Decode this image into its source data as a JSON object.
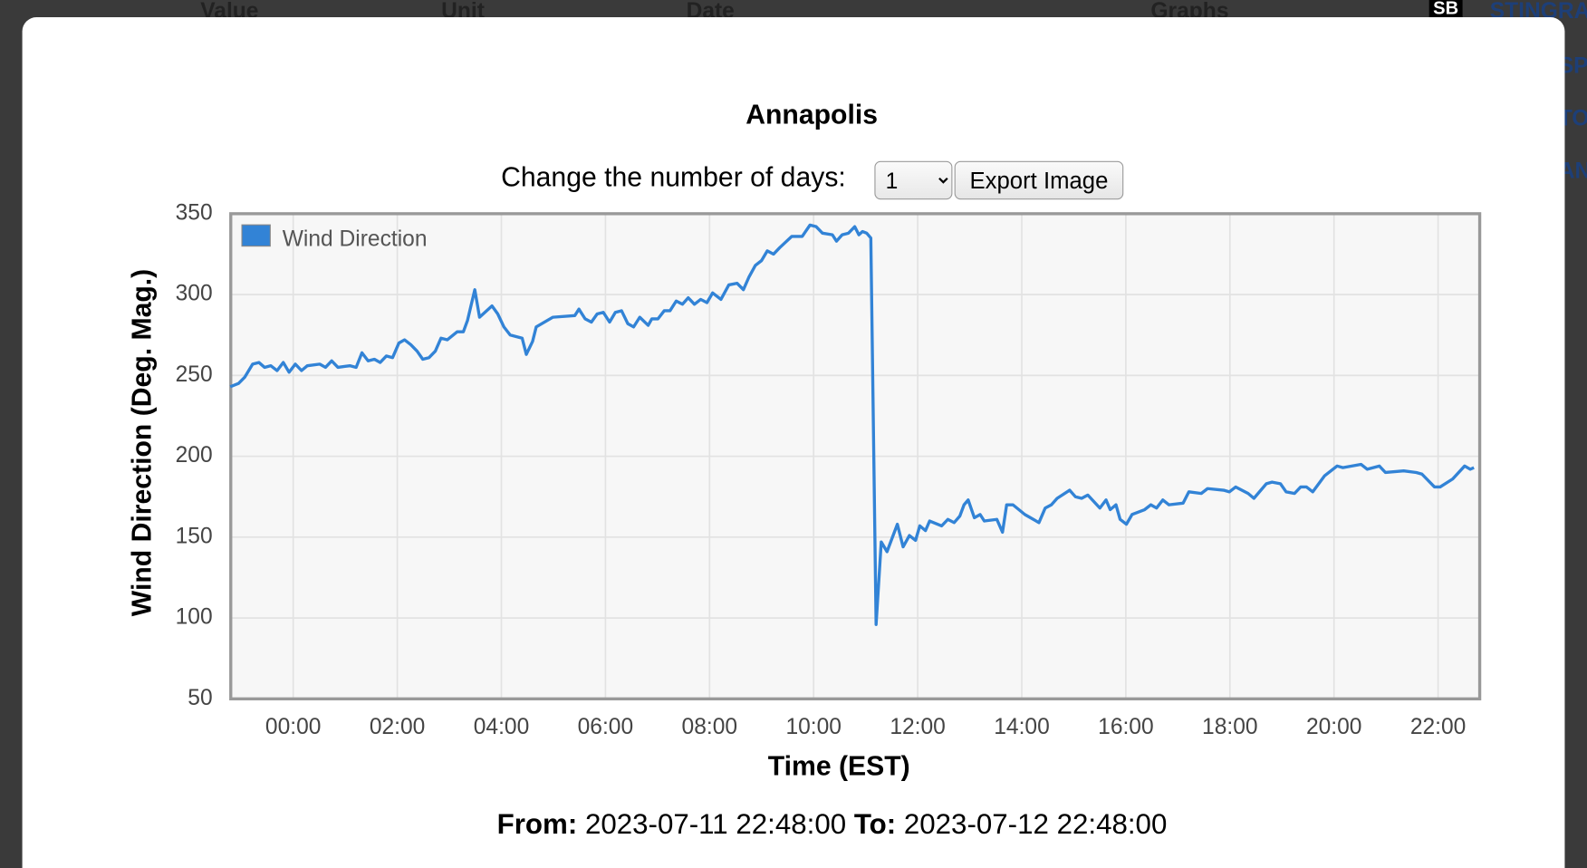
{
  "background": {
    "headers": [
      "Value",
      "Unit",
      "Date",
      "Graphs",
      "SB",
      "STINGRA"
    ],
    "side_fragments": [
      "SPI",
      "TO",
      "AN"
    ]
  },
  "modal": {
    "days_label": "Change the number of days:",
    "days_value": "1",
    "export_button": "Export Image"
  },
  "chart_data": {
    "type": "line",
    "title": "Annapolis",
    "xlabel": "Time (EST)",
    "ylabel": "Wind Direction (Deg. Mag.)",
    "x": [
      -1.21,
      -1.05,
      -0.93,
      -0.78,
      -0.66,
      -0.55,
      -0.43,
      -0.31,
      -0.19,
      -0.08,
      0.04,
      0.16,
      0.27,
      0.51,
      0.62,
      0.74,
      0.86,
      1.09,
      1.21,
      1.32,
      1.44,
      1.56,
      1.67,
      1.79,
      1.91,
      2.03,
      2.14,
      2.26,
      2.38,
      2.49,
      2.61,
      2.73,
      2.84,
      2.96,
      3.15,
      3.27,
      3.35,
      3.49,
      3.58,
      3.82,
      3.93,
      4.05,
      4.17,
      4.4,
      4.48,
      4.6,
      4.67,
      4.99,
      5.41,
      5.49,
      5.61,
      5.73,
      5.84,
      5.96,
      6.08,
      6.19,
      6.31,
      6.43,
      6.54,
      6.66,
      6.82,
      6.89,
      7.01,
      7.13,
      7.24,
      7.36,
      7.48,
      7.59,
      7.71,
      7.83,
      7.95,
      8.06,
      8.22,
      8.37,
      8.53,
      8.65,
      8.76,
      8.88,
      9.0,
      9.11,
      9.23,
      9.35,
      9.58,
      9.78,
      9.93,
      10.05,
      10.17,
      10.36,
      10.44,
      10.55,
      10.67,
      10.79,
      10.87,
      10.94,
      11.02,
      11.1,
      11.2,
      11.3,
      11.41,
      11.61,
      11.72,
      11.84,
      11.96,
      12.04,
      12.15,
      12.23,
      12.46,
      12.58,
      12.7,
      12.81,
      12.89,
      12.97,
      13.09,
      13.2,
      13.28,
      13.52,
      13.63,
      13.71,
      13.83,
      14.06,
      14.33,
      14.45,
      14.57,
      14.68,
      14.92,
      15.03,
      15.15,
      15.27,
      15.5,
      15.62,
      15.7,
      15.81,
      15.89,
      16.01,
      16.12,
      16.36,
      16.48,
      16.59,
      16.71,
      16.83,
      17.1,
      17.21,
      17.45,
      17.57,
      17.88,
      17.99,
      18.11,
      18.35,
      18.46,
      18.7,
      18.81,
      18.97,
      19.08,
      19.24,
      19.36,
      19.47,
      19.59,
      19.82,
      20.06,
      20.17,
      20.52,
      20.64,
      20.87,
      20.99,
      21.34,
      21.58,
      21.69,
      21.93,
      22.04,
      22.28,
      22.51,
      22.62,
      22.69
    ],
    "series": [
      {
        "name": "Wind Direction",
        "color": "#3283d6",
        "values": [
          243,
          245,
          249,
          257,
          258,
          255,
          256,
          253,
          258,
          252,
          257,
          253,
          256,
          257,
          255,
          259,
          255,
          256,
          255,
          264,
          259,
          260,
          258,
          262,
          261,
          270,
          272,
          269,
          265,
          260,
          261,
          265,
          273,
          272,
          277,
          277,
          284,
          303,
          286,
          293,
          288,
          280,
          275,
          273,
          263,
          271,
          280,
          286,
          287,
          291,
          285,
          283,
          288,
          289,
          283,
          289,
          290,
          282,
          280,
          286,
          281,
          285,
          285,
          290,
          290,
          296,
          294,
          298,
          294,
          297,
          295,
          301,
          297,
          306,
          307,
          303,
          311,
          318,
          321,
          327,
          325,
          329,
          336,
          336,
          343,
          342,
          338,
          337,
          333,
          337,
          338,
          342,
          337,
          339,
          338,
          335,
          96,
          147,
          141,
          158,
          144,
          151,
          148,
          157,
          154,
          160,
          157,
          161,
          159,
          163,
          170,
          173,
          162,
          164,
          160,
          161,
          153,
          170,
          170,
          164,
          159,
          168,
          170,
          174,
          179,
          175,
          174,
          176,
          168,
          173,
          167,
          170,
          161,
          158,
          164,
          167,
          170,
          168,
          173,
          170,
          171,
          178,
          177,
          180,
          179,
          178,
          181,
          177,
          174,
          183,
          184,
          183,
          178,
          177,
          181,
          181,
          178,
          188,
          194,
          193,
          195,
          192,
          194,
          190,
          191,
          190,
          189,
          181,
          181,
          186,
          194,
          192,
          193
        ]
      }
    ],
    "xlim": [
      -1.2,
      22.8
    ],
    "xticks": [
      {
        "value": 0,
        "label": "00:00"
      },
      {
        "value": 2,
        "label": "02:00"
      },
      {
        "value": 4,
        "label": "04:00"
      },
      {
        "value": 6,
        "label": "06:00"
      },
      {
        "value": 8,
        "label": "08:00"
      },
      {
        "value": 10,
        "label": "10:00"
      },
      {
        "value": 12,
        "label": "12:00"
      },
      {
        "value": 14,
        "label": "14:00"
      },
      {
        "value": 16,
        "label": "16:00"
      },
      {
        "value": 18,
        "label": "18:00"
      },
      {
        "value": 20,
        "label": "20:00"
      },
      {
        "value": 22,
        "label": "22:00"
      }
    ],
    "ylim": [
      50,
      350
    ],
    "yticks": [
      50,
      100,
      150,
      200,
      250,
      300,
      350
    ],
    "grid": true,
    "legend": "upper left"
  },
  "footer": {
    "from_label": "From:",
    "from_value": "2023-07-11 22:48:00",
    "to_label": "To:",
    "to_value": "2023-07-12 22:48:00"
  }
}
